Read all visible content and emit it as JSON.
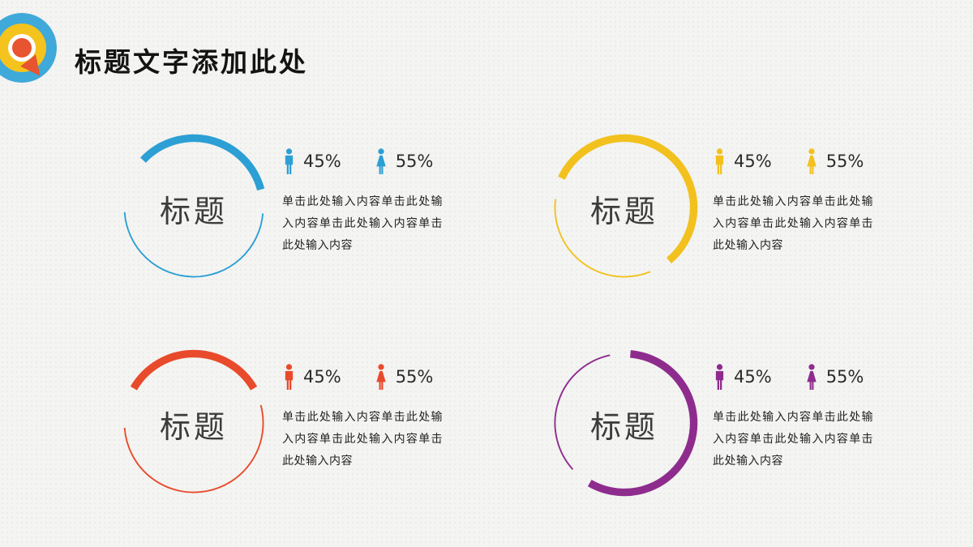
{
  "slide": {
    "title": "标题文字添加此处"
  },
  "logo": {
    "name": "target-dart-logo",
    "colors": {
      "blue": "#3FA9D9",
      "yellow": "#F5C31D",
      "red": "#E8542F"
    }
  },
  "icons": {
    "male": "male-figure-icon",
    "female": "female-figure-icon"
  },
  "sections": [
    {
      "position": "top-left",
      "color": "#2C9FD4",
      "title": "标题",
      "male_pct": "45%",
      "female_pct": "55%",
      "body": "单击此处输入内容单击此处输入内容单击此处输入内容单击此处输入内容",
      "arcs": {
        "thick": [
          313,
          435
        ],
        "thin": [
          95,
          266
        ]
      }
    },
    {
      "position": "top-right",
      "color": "#F2C11E",
      "title": "标题",
      "male_pct": "45%",
      "female_pct": "55%",
      "body": "单击此处输入内容单击此处输入内容单击此处输入内容单击此处输入内容",
      "arcs": {
        "thick": [
          295,
          500
        ],
        "thin": [
          158,
          277
        ]
      }
    },
    {
      "position": "bottom-left",
      "color": "#E84A2B",
      "title": "标题",
      "male_pct": "45%",
      "female_pct": "55%",
      "body": "单击此处输入内容单击此处输入内容单击此处输入内容单击此处输入内容",
      "arcs": {
        "thick": [
          300,
          420
        ],
        "thin": [
          75,
          266
        ]
      }
    },
    {
      "position": "bottom-right",
      "color": "#8E2C8E",
      "title": "标题",
      "male_pct": "45%",
      "female_pct": "55%",
      "body": "单击此处输入内容单击此处输入内容单击此处输入内容单击此处输入内容",
      "arcs": {
        "thick": [
          5,
          210
        ],
        "thin": [
          228,
          348
        ]
      }
    }
  ]
}
